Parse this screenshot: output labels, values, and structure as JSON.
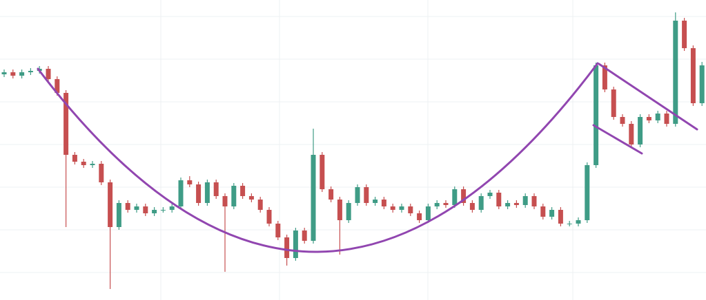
{
  "chart_data": {
    "type": "candlestick",
    "ylim": [
      0,
      436
    ],
    "yticks": [
      40,
      102,
      164,
      226,
      288,
      350,
      412
    ],
    "grid": true,
    "up_color": "#3f9c86",
    "down_color": "#c64f50",
    "open": [
      328,
      331,
      326,
      331,
      333,
      336,
      321,
      301,
      211,
      201,
      196,
      198,
      171,
      106,
      141,
      131,
      136,
      126,
      131,
      131,
      136,
      174,
      168,
      141,
      171,
      151,
      136,
      166,
      151,
      146,
      131,
      111,
      91,
      61,
      101,
      86,
      211,
      161,
      146,
      116,
      141,
      164,
      141,
      146,
      136,
      131,
      136,
      126,
      116,
      136,
      141,
      138,
      161,
      141,
      131,
      151,
      156,
      136,
      141,
      138,
      151,
      136,
      121,
      131,
      111,
      111,
      116,
      196,
      341,
      306,
      266,
      256,
      226,
      266,
      261,
      271,
      256,
      406,
      366,
      286
    ],
    "high": [
      335,
      335,
      335,
      337,
      340,
      340,
      325,
      305,
      215,
      205,
      202,
      202,
      175,
      145,
      145,
      140,
      140,
      135,
      135,
      140,
      178,
      180,
      172,
      175,
      175,
      155,
      170,
      170,
      155,
      150,
      135,
      115,
      95,
      105,
      105,
      249,
      215,
      165,
      150,
      145,
      168,
      168,
      150,
      150,
      140,
      140,
      140,
      130,
      140,
      145,
      145,
      165,
      165,
      145,
      155,
      160,
      160,
      145,
      145,
      155,
      155,
      140,
      135,
      135,
      115,
      120,
      200,
      345,
      345,
      310,
      270,
      260,
      270,
      270,
      275,
      275,
      418,
      410,
      370,
      346
    ],
    "low": [
      324,
      322,
      322,
      327,
      329,
      317,
      297,
      106,
      197,
      192,
      192,
      167,
      16,
      102,
      127,
      127,
      122,
      122,
      127,
      127,
      132,
      164,
      137,
      137,
      147,
      41,
      132,
      147,
      142,
      127,
      107,
      87,
      50,
      57,
      82,
      82,
      157,
      142,
      66,
      112,
      137,
      137,
      137,
      132,
      127,
      127,
      122,
      112,
      112,
      132,
      134,
      134,
      137,
      127,
      127,
      147,
      132,
      132,
      134,
      134,
      132,
      117,
      117,
      107,
      107,
      107,
      112,
      192,
      302,
      262,
      252,
      222,
      222,
      257,
      257,
      252,
      252,
      362,
      282,
      282
    ],
    "close": [
      331,
      326,
      331,
      333,
      336,
      321,
      301,
      211,
      201,
      196,
      198,
      171,
      106,
      141,
      131,
      136,
      126,
      131,
      131,
      136,
      174,
      168,
      141,
      171,
      151,
      136,
      166,
      151,
      146,
      131,
      111,
      91,
      61,
      101,
      86,
      211,
      161,
      146,
      116,
      141,
      164,
      141,
      146,
      136,
      131,
      136,
      126,
      116,
      136,
      141,
      138,
      161,
      141,
      131,
      151,
      156,
      136,
      141,
      138,
      151,
      136,
      121,
      131,
      111,
      111,
      116,
      196,
      341,
      306,
      266,
      256,
      226,
      266,
      261,
      271,
      256,
      406,
      366,
      286,
      341
    ]
  }
}
